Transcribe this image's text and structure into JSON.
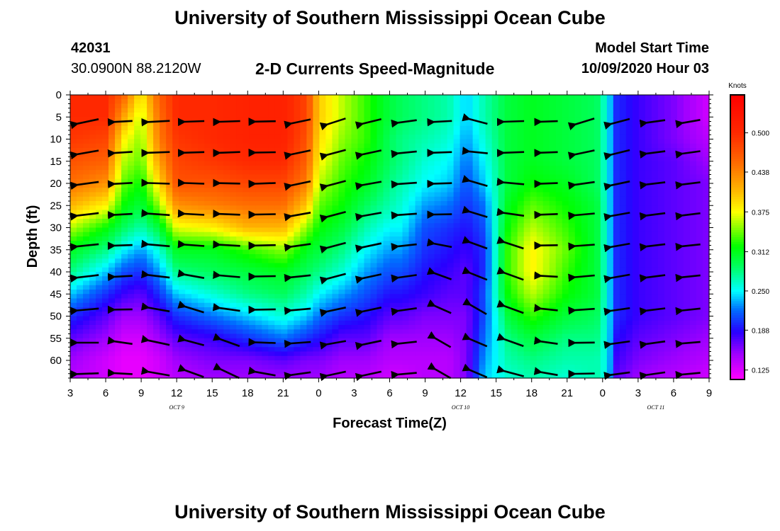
{
  "header": {
    "title": "University of Southern Mississippi Ocean Cube",
    "station_id": "42031",
    "station_position": "30.0900N 88.2120W",
    "subtitle": "2-D Currents Speed-Magnitude",
    "start_label": "Model Start Time",
    "start_value": "10/09/2020 Hour 03"
  },
  "footer": {
    "title": "University of Southern Mississippi Ocean Cube"
  },
  "chart_data": {
    "type": "heatmap",
    "title": "2-D Currents Speed-Magnitude",
    "xlabel": "Forecast Time(Z)",
    "ylabel": "Depth (ft)",
    "x_tick_labels": [
      "3",
      "6",
      "9",
      "12",
      "15",
      "18",
      "21",
      "0",
      "3",
      "6",
      "9",
      "12",
      "15",
      "18",
      "21",
      "0",
      "3",
      "6",
      "9"
    ],
    "x_hours": [
      0,
      3,
      6,
      9,
      12,
      15,
      18,
      21,
      24,
      27,
      30,
      33,
      36,
      39,
      42,
      45,
      48,
      51,
      54
    ],
    "date_labels": [
      {
        "text": "OCT 9",
        "hour": 9
      },
      {
        "text": "OCT 10",
        "hour": 33
      },
      {
        "text": "OCT 11",
        "hour": 49.5
      }
    ],
    "y_ticks": [
      0,
      5,
      10,
      15,
      20,
      25,
      30,
      35,
      40,
      45,
      50,
      55,
      60
    ],
    "ylim": [
      0,
      64
    ],
    "xlim": [
      0,
      54
    ],
    "colorbar": {
      "title": "Knots",
      "range": [
        0.11,
        0.56
      ],
      "tick_labels": [
        "0.500",
        "0.438",
        "0.375",
        "0.312",
        "0.250",
        "0.188",
        "0.125"
      ],
      "tick_values": [
        0.5,
        0.438,
        0.375,
        0.312,
        0.25,
        0.188,
        0.125
      ]
    },
    "depth_levels": [
      0,
      5,
      10,
      15,
      20,
      25,
      30,
      35,
      40,
      45,
      50,
      55,
      60,
      64
    ],
    "columns": [
      {
        "hour": 0,
        "speeds": [
          0.5,
          0.5,
          0.49,
          0.47,
          0.45,
          0.41,
          0.36,
          0.31,
          0.28,
          0.24,
          0.2,
          0.17,
          0.15,
          0.14
        ]
      },
      {
        "hour": 3,
        "speeds": [
          0.5,
          0.5,
          0.48,
          0.46,
          0.43,
          0.38,
          0.32,
          0.28,
          0.24,
          0.2,
          0.17,
          0.15,
          0.13,
          0.13
        ]
      },
      {
        "hour": 4.5,
        "speeds": [
          0.46,
          0.42,
          0.38,
          0.36,
          0.34,
          0.32,
          0.29,
          0.25,
          0.21,
          0.18,
          0.15,
          0.13,
          0.12,
          0.12
        ]
      },
      {
        "hour": 6,
        "speeds": [
          0.38,
          0.36,
          0.35,
          0.34,
          0.32,
          0.3,
          0.27,
          0.23,
          0.2,
          0.17,
          0.15,
          0.13,
          0.12,
          0.12
        ]
      },
      {
        "hour": 7.5,
        "speeds": [
          0.46,
          0.45,
          0.44,
          0.42,
          0.39,
          0.35,
          0.3,
          0.26,
          0.23,
          0.2,
          0.17,
          0.15,
          0.13,
          0.13
        ]
      },
      {
        "hour": 9,
        "speeds": [
          0.5,
          0.5,
          0.49,
          0.48,
          0.47,
          0.43,
          0.37,
          0.31,
          0.28,
          0.24,
          0.2,
          0.17,
          0.15,
          0.14
        ]
      },
      {
        "hour": 12,
        "speeds": [
          0.5,
          0.5,
          0.5,
          0.49,
          0.47,
          0.44,
          0.38,
          0.31,
          0.29,
          0.26,
          0.22,
          0.18,
          0.16,
          0.15
        ]
      },
      {
        "hour": 15,
        "speeds": [
          0.51,
          0.51,
          0.51,
          0.5,
          0.48,
          0.45,
          0.41,
          0.33,
          0.3,
          0.28,
          0.24,
          0.2,
          0.16,
          0.15
        ]
      },
      {
        "hour": 18,
        "speeds": [
          0.51,
          0.51,
          0.51,
          0.5,
          0.48,
          0.45,
          0.41,
          0.35,
          0.31,
          0.29,
          0.26,
          0.22,
          0.17,
          0.15
        ]
      },
      {
        "hour": 20,
        "speeds": [
          0.48,
          0.48,
          0.47,
          0.46,
          0.44,
          0.4,
          0.35,
          0.31,
          0.29,
          0.27,
          0.24,
          0.2,
          0.16,
          0.15
        ]
      },
      {
        "hour": 21,
        "speeds": [
          0.4,
          0.4,
          0.39,
          0.38,
          0.36,
          0.34,
          0.32,
          0.3,
          0.28,
          0.25,
          0.22,
          0.19,
          0.16,
          0.15
        ]
      },
      {
        "hour": 23,
        "speeds": [
          0.36,
          0.36,
          0.35,
          0.34,
          0.33,
          0.32,
          0.3,
          0.28,
          0.26,
          0.23,
          0.2,
          0.17,
          0.15,
          0.14
        ]
      },
      {
        "hour": 25,
        "speeds": [
          0.33,
          0.33,
          0.33,
          0.32,
          0.31,
          0.29,
          0.27,
          0.25,
          0.23,
          0.21,
          0.19,
          0.17,
          0.15,
          0.14
        ]
      },
      {
        "hour": 27,
        "speeds": [
          0.3,
          0.3,
          0.29,
          0.29,
          0.28,
          0.27,
          0.25,
          0.23,
          0.21,
          0.19,
          0.17,
          0.15,
          0.14,
          0.13
        ]
      },
      {
        "hour": 28,
        "speeds": [
          0.29,
          0.29,
          0.28,
          0.28,
          0.27,
          0.26,
          0.25,
          0.23,
          0.21,
          0.19,
          0.17,
          0.15,
          0.14,
          0.13
        ]
      },
      {
        "hour": 30,
        "speeds": [
          0.28,
          0.28,
          0.27,
          0.26,
          0.25,
          0.23,
          0.21,
          0.2,
          0.19,
          0.18,
          0.16,
          0.15,
          0.14,
          0.14
        ]
      },
      {
        "hour": 32,
        "speeds": [
          0.27,
          0.27,
          0.26,
          0.25,
          0.24,
          0.22,
          0.2,
          0.19,
          0.18,
          0.17,
          0.16,
          0.15,
          0.14,
          0.14
        ]
      },
      {
        "hour": 33.5,
        "speeds": [
          0.24,
          0.24,
          0.23,
          0.22,
          0.21,
          0.2,
          0.19,
          0.18,
          0.17,
          0.17,
          0.16,
          0.16,
          0.16,
          0.16
        ]
      },
      {
        "hour": 35,
        "speeds": [
          0.27,
          0.27,
          0.26,
          0.25,
          0.24,
          0.22,
          0.21,
          0.2,
          0.2,
          0.21,
          0.21,
          0.22,
          0.23,
          0.24
        ]
      },
      {
        "hour": 37,
        "speeds": [
          0.3,
          0.3,
          0.3,
          0.3,
          0.3,
          0.31,
          0.32,
          0.33,
          0.33,
          0.32,
          0.3,
          0.28,
          0.27,
          0.26
        ]
      },
      {
        "hour": 39,
        "speeds": [
          0.31,
          0.31,
          0.31,
          0.31,
          0.32,
          0.34,
          0.36,
          0.38,
          0.38,
          0.36,
          0.33,
          0.3,
          0.28,
          0.27
        ]
      },
      {
        "hour": 42,
        "speeds": [
          0.3,
          0.3,
          0.3,
          0.3,
          0.31,
          0.32,
          0.33,
          0.34,
          0.33,
          0.32,
          0.3,
          0.28,
          0.27,
          0.26
        ]
      },
      {
        "hour": 44.5,
        "speeds": [
          0.29,
          0.29,
          0.29,
          0.29,
          0.29,
          0.3,
          0.3,
          0.3,
          0.3,
          0.3,
          0.29,
          0.28,
          0.27,
          0.27
        ]
      },
      {
        "hour": 45.5,
        "speeds": [
          0.25,
          0.25,
          0.25,
          0.25,
          0.25,
          0.25,
          0.25,
          0.25,
          0.25,
          0.25,
          0.25,
          0.25,
          0.25,
          0.25
        ]
      },
      {
        "hour": 46,
        "speeds": [
          0.2,
          0.2,
          0.2,
          0.2,
          0.2,
          0.2,
          0.2,
          0.2,
          0.2,
          0.2,
          0.2,
          0.19,
          0.18,
          0.17
        ]
      },
      {
        "hour": 48,
        "speeds": [
          0.18,
          0.18,
          0.18,
          0.18,
          0.18,
          0.18,
          0.18,
          0.18,
          0.18,
          0.18,
          0.18,
          0.17,
          0.16,
          0.15
        ]
      },
      {
        "hour": 51,
        "speeds": [
          0.16,
          0.16,
          0.16,
          0.17,
          0.17,
          0.17,
          0.17,
          0.17,
          0.17,
          0.17,
          0.17,
          0.16,
          0.15,
          0.14
        ]
      },
      {
        "hour": 54,
        "speeds": [
          0.13,
          0.13,
          0.14,
          0.15,
          0.16,
          0.16,
          0.16,
          0.16,
          0.16,
          0.16,
          0.16,
          0.15,
          0.14,
          0.13
        ]
      }
    ],
    "vector_hours": [
      1.5,
      4.5,
      7.5,
      10.5,
      13.5,
      16.5,
      19.5,
      22.5,
      25.5,
      28.5,
      31.5,
      34.5,
      37.5,
      40.5,
      43.5,
      46.5,
      49.5,
      52.5
    ],
    "vector_depths": [
      6,
      13,
      20,
      27,
      34,
      41,
      48.5,
      56,
      63
    ],
    "vector_direction_deg": [
      [
        -12,
        -3,
        -3,
        -2,
        -2,
        -1,
        -12,
        -18,
        -14,
        -8,
        -3,
        15,
        -2,
        -2,
        -17,
        -15,
        -8,
        -10
      ],
      [
        -10,
        -4,
        -2,
        -2,
        -2,
        -1,
        -12,
        -15,
        -12,
        -6,
        -2,
        6,
        -2,
        -2,
        -12,
        -14,
        -7,
        -8
      ],
      [
        -8,
        -3,
        2,
        2,
        1,
        -2,
        -12,
        -15,
        -10,
        -4,
        -2,
        16,
        5,
        -2,
        -8,
        -12,
        -7,
        -7
      ],
      [
        -7,
        -3,
        4,
        3,
        2,
        -1,
        -10,
        -15,
        -10,
        -4,
        -1,
        17,
        8,
        -2,
        -5,
        -10,
        -7,
        -7
      ],
      [
        -6,
        -2,
        5,
        4,
        3,
        -1,
        -8,
        -15,
        -12,
        -6,
        11,
        20,
        18,
        -1,
        -4,
        -10,
        -7,
        -6
      ],
      [
        -7,
        -3,
        7,
        10,
        5,
        -1,
        -6,
        -15,
        -12,
        -8,
        20,
        22,
        20,
        3,
        -5,
        -10,
        -7,
        -6
      ],
      [
        -5,
        -1,
        10,
        17,
        8,
        -1,
        -5,
        -12,
        -12,
        -8,
        24,
        30,
        20,
        6,
        -4,
        -8,
        -7,
        -6
      ],
      [
        0,
        8,
        12,
        15,
        20,
        2,
        -4,
        -10,
        -12,
        -6,
        30,
        23,
        20,
        8,
        -1,
        -8,
        -8,
        -5
      ],
      [
        -2,
        3,
        10,
        20,
        25,
        10,
        -8,
        -12,
        -12,
        -5,
        30,
        23,
        15,
        10,
        -1,
        -8,
        -8,
        -5
      ]
    ],
    "vector_speed_scale": [
      [
        0.9,
        0.75,
        0.9,
        0.82,
        0.85,
        0.85,
        0.82,
        0.8,
        0.8,
        0.78,
        0.75,
        0.78,
        0.85,
        0.7,
        0.82,
        0.8,
        0.78,
        0.75
      ]
    ]
  }
}
